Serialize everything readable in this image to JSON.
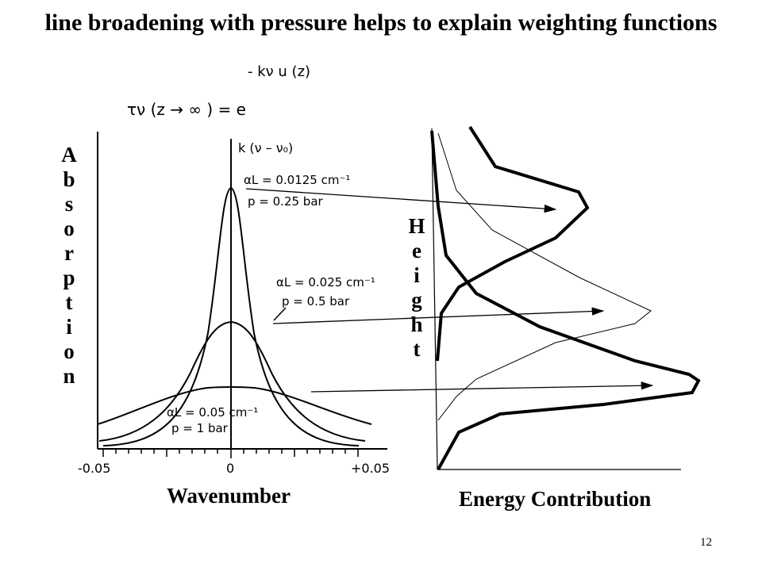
{
  "title": "line broadening with pressure helps to explain weighting functions",
  "formula": {
    "exponent": "- kν u (z)",
    "base": "τν (z → ∞ ) =  e"
  },
  "left_plot": {
    "y_label": [
      "A",
      "b",
      "s",
      "o",
      "r",
      "p",
      "t",
      "i",
      "o",
      "n"
    ],
    "x_label": "Wavenumber",
    "ticks": [
      "-0.05",
      "0",
      "+0.05"
    ],
    "axis_label": "k (ν – ν₀)",
    "curves": [
      {
        "alpha": "αL = 0.0125 cm⁻¹",
        "pressure": "p = 0.25 bar"
      },
      {
        "alpha": "αL = 0.025 cm⁻¹",
        "pressure": "p = 0.5 bar"
      },
      {
        "alpha": "αL = 0.05 cm⁻¹",
        "pressure": "p = 1 bar"
      }
    ]
  },
  "right_plot": {
    "y_label": [
      "H",
      "e",
      "i",
      "g",
      "h",
      "t"
    ],
    "x_label": "Energy Contribution"
  },
  "page_number": "12"
}
